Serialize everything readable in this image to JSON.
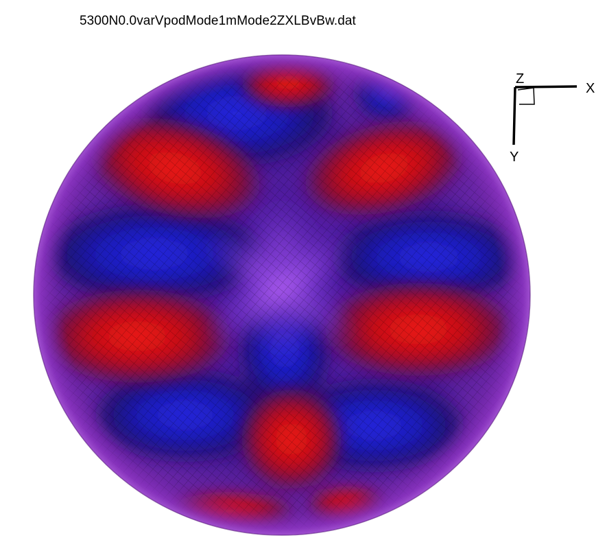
{
  "title": "5300N0.0varVpodMode1mMode2ZXLBvBw.dat",
  "axes": {
    "z_label": "Z",
    "x_label": "X",
    "y_label": "Y"
  },
  "colors": {
    "positive": "#d01010",
    "negative": "#1c1cc8",
    "neutral": "#6a1fa0",
    "highlight": "#b070f0"
  }
}
